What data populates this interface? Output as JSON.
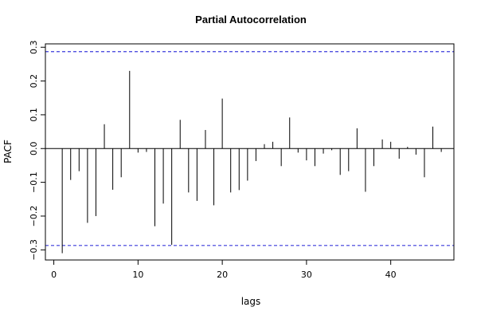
{
  "chart_data": {
    "type": "bar",
    "title": "Partial Autocorrelation",
    "xlabel": "lags",
    "ylabel": "PACF",
    "xlim": [
      -1,
      47.5
    ],
    "ylim": [
      -0.33,
      0.31
    ],
    "x_ticks": [
      0,
      10,
      20,
      30,
      40
    ],
    "y_ticks": [
      -0.3,
      -0.2,
      -0.1,
      0.0,
      0.1,
      0.2,
      0.3
    ],
    "y_tick_labels": [
      "−0.3",
      "−0.2",
      "−0.1",
      "0.0",
      "0.1",
      "0.2",
      "0.3"
    ],
    "confidence_bounds": [
      0.287,
      -0.287
    ],
    "ci_color": "#3b3bdc",
    "grid": false,
    "x": [
      1,
      2,
      3,
      4,
      5,
      6,
      7,
      8,
      9,
      10,
      11,
      12,
      13,
      14,
      15,
      16,
      17,
      18,
      19,
      20,
      21,
      22,
      23,
      24,
      25,
      26,
      27,
      28,
      29,
      30,
      31,
      32,
      33,
      34,
      35,
      36,
      37,
      38,
      39,
      40,
      41,
      42,
      43,
      44,
      45,
      46
    ],
    "values": [
      -0.31,
      -0.093,
      -0.067,
      -0.22,
      -0.2,
      0.072,
      -0.122,
      -0.085,
      0.23,
      -0.012,
      -0.01,
      -0.23,
      -0.163,
      -0.285,
      0.085,
      -0.13,
      -0.155,
      0.055,
      -0.168,
      0.148,
      -0.13,
      -0.123,
      -0.095,
      -0.037,
      0.013,
      0.02,
      -0.052,
      0.092,
      -0.012,
      -0.035,
      -0.052,
      -0.015,
      -0.005,
      -0.078,
      -0.067,
      0.06,
      -0.128,
      -0.052,
      0.027,
      0.02,
      -0.03,
      0.005,
      -0.018,
      -0.085,
      0.065,
      -0.01
    ]
  }
}
